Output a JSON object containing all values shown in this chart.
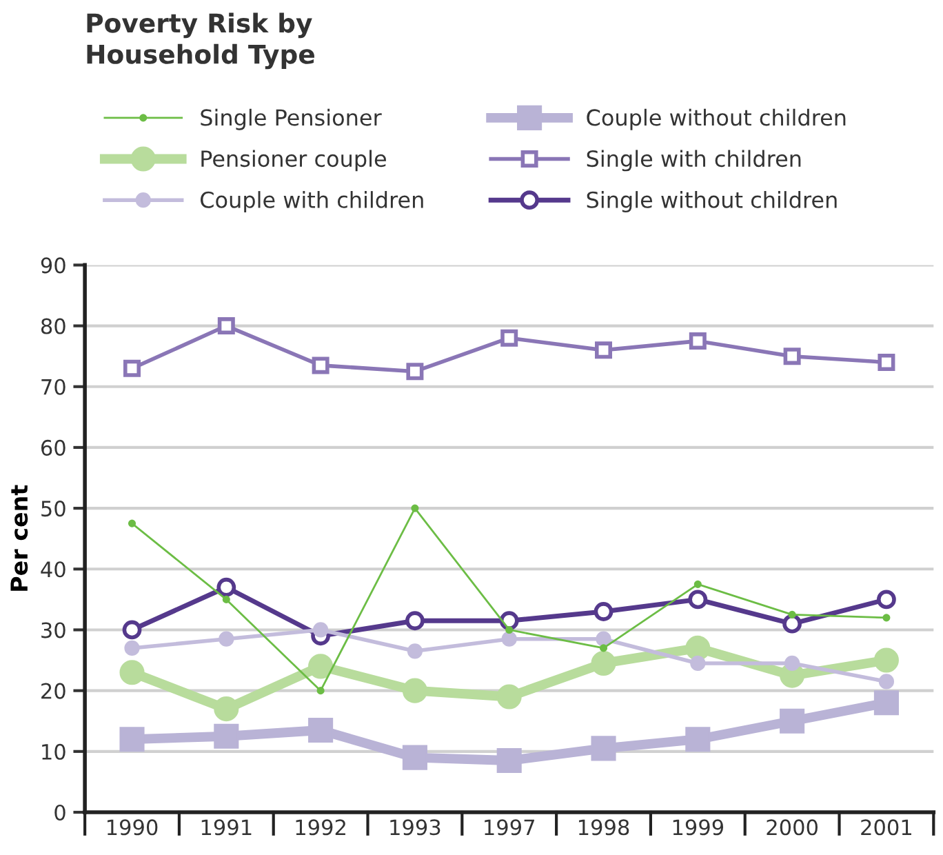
{
  "chart_data": {
    "type": "line",
    "title": "Poverty Risk by\nHousehold Type",
    "ylabel": "Per cent",
    "categories": [
      "1990",
      "1991",
      "1992",
      "1993",
      "1997",
      "1998",
      "1999",
      "2000",
      "2001"
    ],
    "ylim": [
      0,
      90
    ],
    "yticks": [
      0,
      10,
      20,
      30,
      40,
      50,
      60,
      70,
      80,
      90
    ],
    "grid": "y",
    "legend": "top",
    "series": [
      {
        "name": "Single Pensioner",
        "color": "#6cbd45",
        "marker": "circle",
        "values": [
          47.5,
          35,
          20,
          50,
          30,
          27,
          37.5,
          32.5,
          32
        ]
      },
      {
        "name": "Pensioner couple",
        "color": "#b8dc9c",
        "marker": "circle",
        "values": [
          23,
          17,
          24,
          20,
          19,
          24.5,
          27,
          22.5,
          25
        ]
      },
      {
        "name": "Couple with children",
        "color": "#c3bcdc",
        "marker": "circle",
        "values": [
          27,
          28.5,
          30,
          26.5,
          28.5,
          28.5,
          24.5,
          24.5,
          21.5
        ]
      },
      {
        "name": "Couple without children",
        "color": "#b9b3d6",
        "marker": "square",
        "values": [
          12,
          12.5,
          13.5,
          9,
          8.5,
          10.5,
          12,
          15,
          18
        ]
      },
      {
        "name": "Single with children",
        "color": "#8a76b6",
        "marker": "square",
        "values": [
          73,
          80,
          73.5,
          72.5,
          78,
          76,
          77.5,
          75,
          74
        ]
      },
      {
        "name": "Single without children",
        "color": "#55398c",
        "marker": "circle",
        "values": [
          30,
          37,
          29,
          31.5,
          31.5,
          33,
          35,
          31,
          35
        ]
      }
    ]
  }
}
